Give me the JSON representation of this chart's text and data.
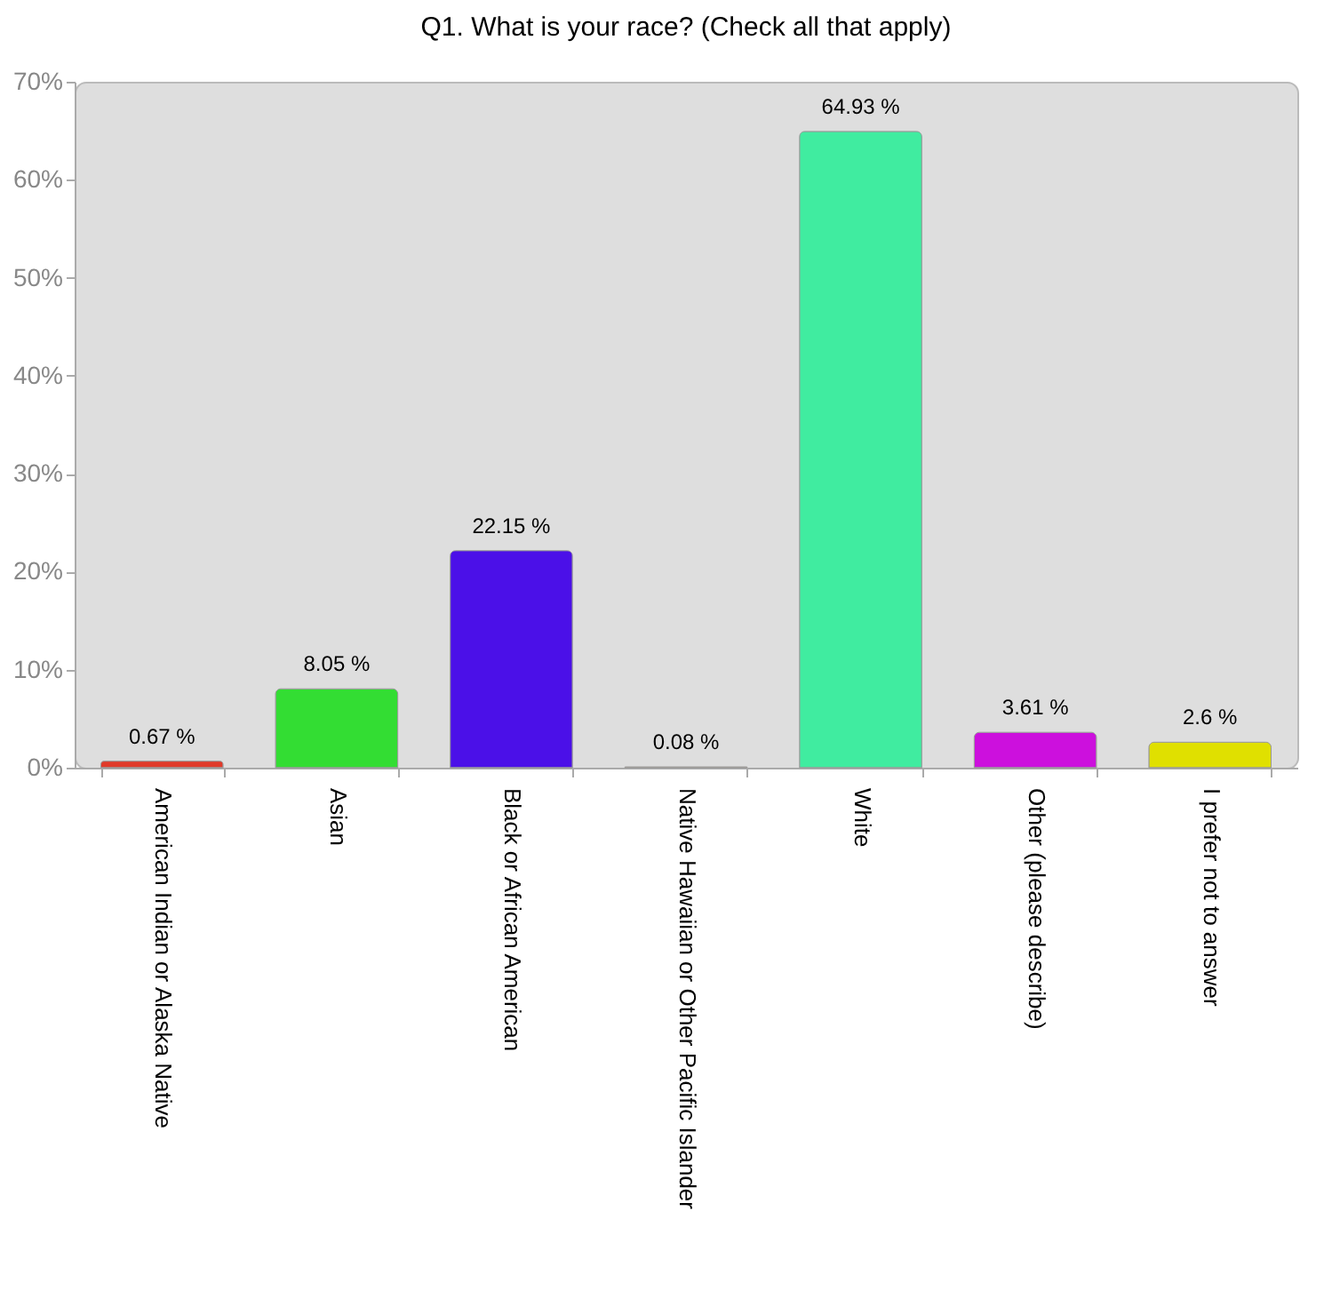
{
  "chart_data": {
    "type": "bar",
    "title": "Q1. What is your race? (Check all that apply)",
    "categories": [
      "American Indian or Alaska Native",
      "Asian",
      "Black or African American",
      "Native Hawaiian or Other Pacific Islander",
      "White",
      "Other (please describe)",
      "I prefer not to answer"
    ],
    "values": [
      0.67,
      8.05,
      22.15,
      0.08,
      64.93,
      3.61,
      2.6
    ],
    "colors": [
      "#e03a2a",
      "#33dd33",
      "#4b10e8",
      "#f0a040",
      "#40eca0",
      "#cc10dd",
      "#e0e000"
    ],
    "value_labels": [
      "0.67 %",
      "8.05 %",
      "22.15 %",
      "0.08 %",
      "64.93 %",
      "3.61 %",
      "2.6 %"
    ],
    "ylim": [
      0,
      70
    ],
    "yticks": [
      {
        "value": 0,
        "label": "0%"
      },
      {
        "value": 10,
        "label": "10%"
      },
      {
        "value": 20,
        "label": "20%"
      },
      {
        "value": 30,
        "label": "30%"
      },
      {
        "value": 40,
        "label": "40%"
      },
      {
        "value": 50,
        "label": "50%"
      },
      {
        "value": 60,
        "label": "60%"
      },
      {
        "value": 70,
        "label": "70%"
      }
    ],
    "grid": false
  }
}
